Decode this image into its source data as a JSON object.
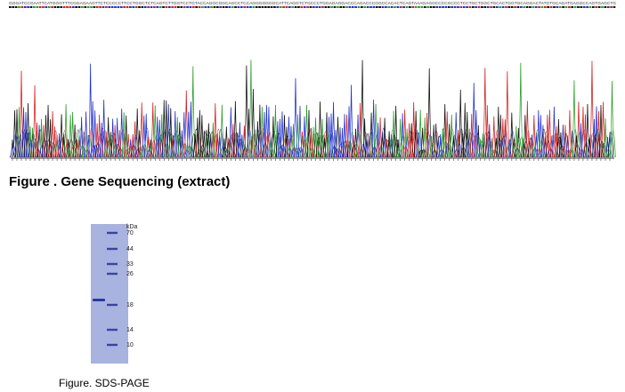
{
  "sequence": "GGGATCCGAATTCATGGGTTTCGGAGAAGTTCTCCCCCTTCCTGGCTCTCAGTCTTGGTCCTGTACCAGGCGGCAGCCTCCAGGGGGGGCATTCAGGTCTGCCCTGGAGAGGACCCAGACCCGGCCACACTCAGTAAAGAGGCCCCGCCCTCCTGCTGGCTGCACTGGTGCAGGACTATGTGCAGATGAGGCCAGTGAGCTG",
  "figure1": {
    "caption": "Figure . Gene Sequencing (extract)"
  },
  "figure2": {
    "caption": "Figure. SDS-PAGE",
    "unit": "kDa",
    "markers": [
      "70",
      "44",
      "33",
      "26",
      "18",
      "14",
      "10"
    ]
  }
}
